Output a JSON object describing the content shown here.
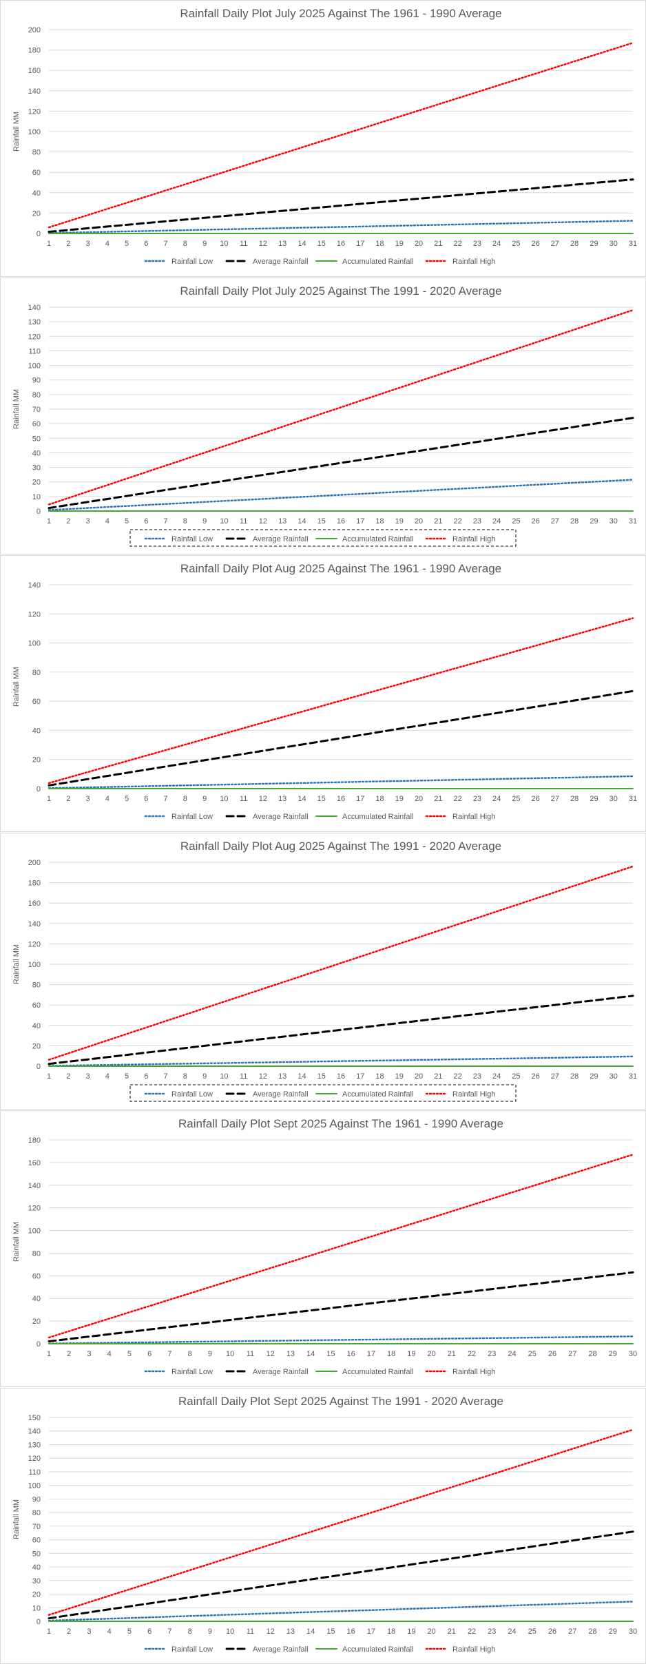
{
  "colors": {
    "rainfall_low": "#2e75b6",
    "average_rainfall": "#000000",
    "accumulated_rainfall": "#44a832",
    "rainfall_high": "#ff0000",
    "gridline": "#d9d9d9",
    "text": "#595959"
  },
  "chart_data": [
    {
      "type": "line",
      "title": "Rainfall Daily Plot July 2025 Against The 1961 - 1990 Average",
      "xlabel": "",
      "ylabel": "Rainfall MM",
      "ylim": [
        0,
        200
      ],
      "ytick_step": 20,
      "grid": true,
      "legend_position": "bottom",
      "legend_boxed": false,
      "x": [
        1,
        2,
        3,
        4,
        5,
        6,
        7,
        8,
        9,
        10,
        11,
        12,
        13,
        14,
        15,
        16,
        17,
        18,
        19,
        20,
        21,
        22,
        23,
        24,
        25,
        26,
        27,
        28,
        29,
        30,
        31
      ],
      "series": [
        {
          "name": "Rainfall Low",
          "style": "dotted",
          "start": 0.4,
          "end": 12.5
        },
        {
          "name": "Average Rainfall",
          "style": "dashed",
          "start": 1.7,
          "end": 53
        },
        {
          "name": "Accumulated Rainfall",
          "style": "solid",
          "start": 0,
          "end": 0
        },
        {
          "name": "Rainfall High",
          "style": "dotted",
          "start": 6,
          "end": 187
        }
      ]
    },
    {
      "type": "line",
      "title": "Rainfall Daily Plot July 2025 Against The 1991 - 2020 Average",
      "xlabel": "",
      "ylabel": "Rainfall MM",
      "ylim": [
        0,
        140
      ],
      "ytick_step": 10,
      "grid": true,
      "legend_position": "bottom",
      "legend_boxed": true,
      "x": [
        1,
        2,
        3,
        4,
        5,
        6,
        7,
        8,
        9,
        10,
        11,
        12,
        13,
        14,
        15,
        16,
        17,
        18,
        19,
        20,
        21,
        22,
        23,
        24,
        25,
        26,
        27,
        28,
        29,
        30,
        31
      ],
      "series": [
        {
          "name": "Rainfall Low",
          "style": "dotted",
          "start": 0.7,
          "end": 21.5
        },
        {
          "name": "Average Rainfall",
          "style": "dashed",
          "start": 2.1,
          "end": 64
        },
        {
          "name": "Accumulated Rainfall",
          "style": "solid",
          "start": 0,
          "end": 0
        },
        {
          "name": "Rainfall High",
          "style": "dotted",
          "start": 4.5,
          "end": 138
        }
      ]
    },
    {
      "type": "line",
      "title": "Rainfall Daily Plot Aug 2025 Against The 1961 - 1990 Average",
      "xlabel": "",
      "ylabel": "Rainfall MM",
      "ylim": [
        0,
        140
      ],
      "ytick_step": 20,
      "grid": true,
      "legend_position": "bottom",
      "legend_boxed": false,
      "x": [
        1,
        2,
        3,
        4,
        5,
        6,
        7,
        8,
        9,
        10,
        11,
        12,
        13,
        14,
        15,
        16,
        17,
        18,
        19,
        20,
        21,
        22,
        23,
        24,
        25,
        26,
        27,
        28,
        29,
        30,
        31
      ],
      "series": [
        {
          "name": "Rainfall Low",
          "style": "dotted",
          "start": 0.3,
          "end": 8.5
        },
        {
          "name": "Average Rainfall",
          "style": "dashed",
          "start": 2.2,
          "end": 67
        },
        {
          "name": "Accumulated Rainfall",
          "style": "solid",
          "start": 0,
          "end": 0
        },
        {
          "name": "Rainfall High",
          "style": "dotted",
          "start": 3.8,
          "end": 117
        }
      ]
    },
    {
      "type": "line",
      "title": "Rainfall Daily Plot Aug 2025 Against The 1991 - 2020 Average",
      "xlabel": "",
      "ylabel": "Rainfall MM",
      "ylim": [
        0,
        200
      ],
      "ytick_step": 20,
      "grid": true,
      "legend_position": "bottom",
      "legend_boxed": true,
      "x": [
        1,
        2,
        3,
        4,
        5,
        6,
        7,
        8,
        9,
        10,
        11,
        12,
        13,
        14,
        15,
        16,
        17,
        18,
        19,
        20,
        21,
        22,
        23,
        24,
        25,
        26,
        27,
        28,
        29,
        30,
        31
      ],
      "series": [
        {
          "name": "Rainfall Low",
          "style": "dotted",
          "start": 0.3,
          "end": 9.5
        },
        {
          "name": "Average Rainfall",
          "style": "dashed",
          "start": 2.2,
          "end": 69
        },
        {
          "name": "Accumulated Rainfall",
          "style": "solid",
          "start": 0,
          "end": 0
        },
        {
          "name": "Rainfall High",
          "style": "dotted",
          "start": 6.3,
          "end": 196
        }
      ]
    },
    {
      "type": "line",
      "title": "Rainfall Daily Plot Sept 2025 Against The 1961 - 1990 Average",
      "xlabel": "",
      "ylabel": "Rainfall MM",
      "ylim": [
        0,
        180
      ],
      "ytick_step": 20,
      "grid": true,
      "legend_position": "bottom",
      "legend_boxed": false,
      "x": [
        1,
        2,
        3,
        4,
        5,
        6,
        7,
        8,
        9,
        10,
        11,
        12,
        13,
        14,
        15,
        16,
        17,
        18,
        19,
        20,
        21,
        22,
        23,
        24,
        25,
        26,
        27,
        28,
        29,
        30
      ],
      "series": [
        {
          "name": "Rainfall Low",
          "style": "dotted",
          "start": 0.2,
          "end": 6.5
        },
        {
          "name": "Average Rainfall",
          "style": "dashed",
          "start": 2.1,
          "end": 63
        },
        {
          "name": "Accumulated Rainfall",
          "style": "solid",
          "start": 0,
          "end": 0
        },
        {
          "name": "Rainfall High",
          "style": "dotted",
          "start": 5.5,
          "end": 167
        }
      ]
    },
    {
      "type": "line",
      "title": "Rainfall Daily Plot Sept 2025 Against The 1991 - 2020 Average",
      "xlabel": "",
      "ylabel": "Rainfall MM",
      "ylim": [
        0,
        150
      ],
      "ytick_step": 10,
      "grid": true,
      "legend_position": "bottom",
      "legend_boxed": false,
      "x": [
        1,
        2,
        3,
        4,
        5,
        6,
        7,
        8,
        9,
        10,
        11,
        12,
        13,
        14,
        15,
        16,
        17,
        18,
        19,
        20,
        21,
        22,
        23,
        24,
        25,
        26,
        27,
        28,
        29,
        30
      ],
      "series": [
        {
          "name": "Rainfall Low",
          "style": "dotted",
          "start": 0.5,
          "end": 14.5
        },
        {
          "name": "Average Rainfall",
          "style": "dashed",
          "start": 2.2,
          "end": 66
        },
        {
          "name": "Accumulated Rainfall",
          "style": "solid",
          "start": 0,
          "end": 0
        },
        {
          "name": "Rainfall High",
          "style": "dotted",
          "start": 4.7,
          "end": 141
        }
      ]
    }
  ]
}
